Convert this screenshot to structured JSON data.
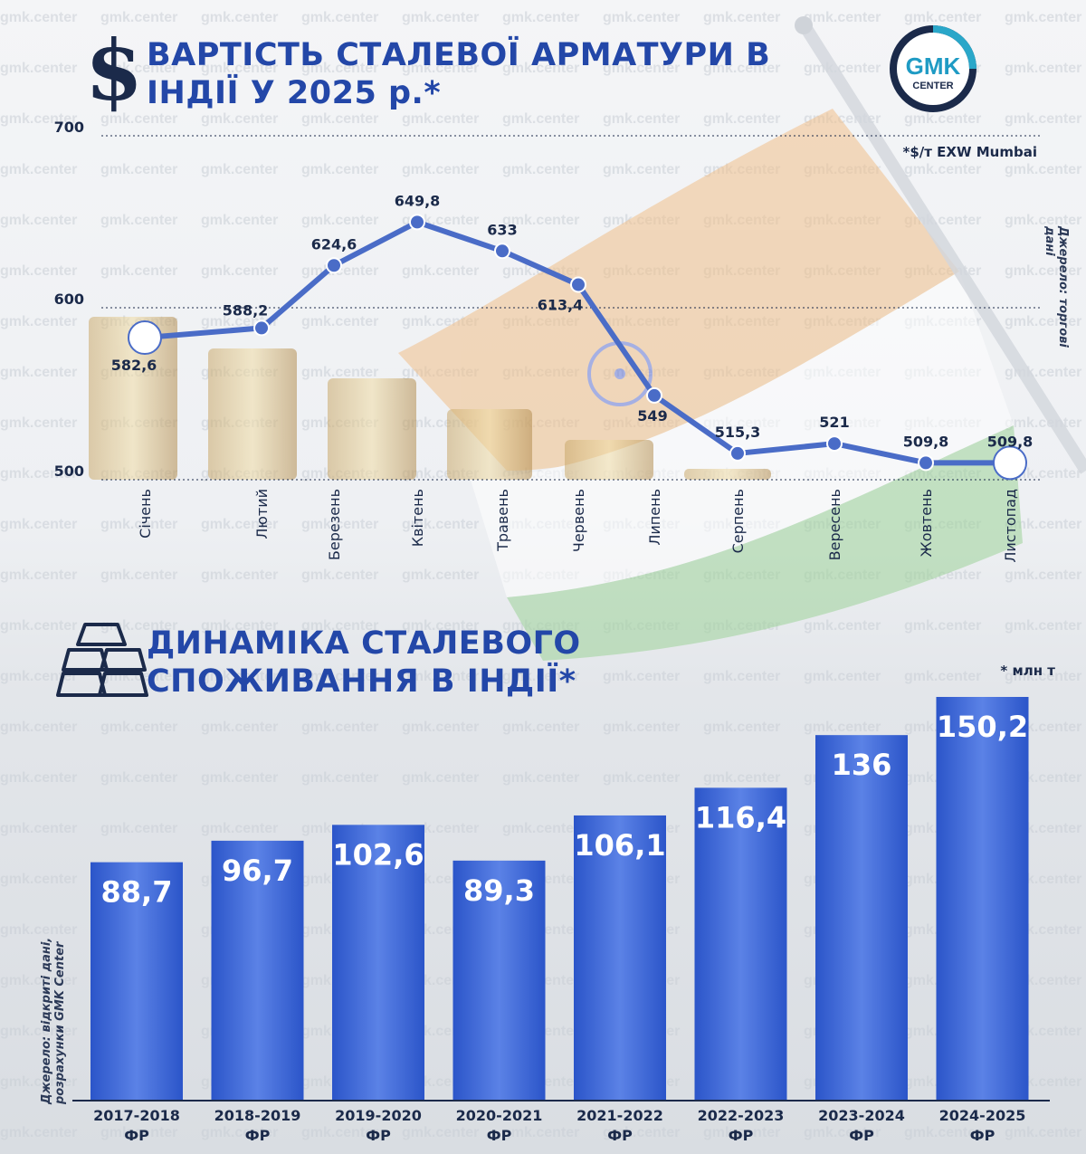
{
  "header": {
    "title_top": "ВАРТІСТЬ СТАЛЕВОЇ АРМАТУРИ В ІНДІЇ У 2025 р.*",
    "logo_line1": "GMK",
    "logo_line2": "CENTER",
    "unit_note": "*$/т EXW Mumbai",
    "source_top": "Джерело: торгові дані",
    "title_bottom": "ДИНАМІКА СТАЛЕВОГО СПОЖИВАННЯ В ІНДІЇ*",
    "unit_note_bottom": "* млн т",
    "source_bottom": "Джерело: відкриті дані, розрахунки GMK Center",
    "watermark": "gmk.center"
  },
  "colors": {
    "title": "#2347a8",
    "line": "#4a6cc7",
    "bar": "#2f5bd0",
    "text": "#1b2a4a"
  },
  "chart_data": [
    {
      "type": "line",
      "title": "ВАРТІСТЬ СТАЛЕВОЇ АРМАТУРИ В ІНДІЇ У 2025 р.*",
      "categories": [
        "Січень",
        "Лютий",
        "Березень",
        "Квітень",
        "Травень",
        "Червень",
        "Липень",
        "Серпень",
        "Вересень",
        "Жовтень",
        "Листопад"
      ],
      "values": [
        582.6,
        588.2,
        624.6,
        649.8,
        633,
        613.4,
        549,
        515.3,
        521,
        509.8,
        509.8
      ],
      "labels": [
        "582,6",
        "588,2",
        "624,6",
        "649,8",
        "633",
        "613,4",
        "549",
        "515,3",
        "521",
        "509,8",
        "509,8"
      ],
      "yticks": [
        "500",
        "600",
        "700"
      ],
      "ytick_values": [
        500,
        600,
        700
      ],
      "ylim": [
        500,
        700
      ],
      "grid": true
    },
    {
      "type": "bar",
      "title": "ДИНАМІКА СТАЛЕВОГО СПОЖИВАННЯ В ІНДІЇ*",
      "categories": [
        "2017-2018 ФР",
        "2018-2019 ФР",
        "2019-2020 ФР",
        "2020-2021 ФР",
        "2021-2022 ФР",
        "2022-2023 ФР",
        "2023-2024 ФР",
        "2024-2025 ФР"
      ],
      "category_line1": [
        "2017-2018",
        "2018-2019",
        "2019-2020",
        "2020-2021",
        "2021-2022",
        "2022-2023",
        "2023-2024",
        "2024-2025"
      ],
      "category_line2": [
        "ФР",
        "ФР",
        "ФР",
        "ФР",
        "ФР",
        "ФР",
        "ФР",
        "ФР"
      ],
      "values": [
        88.7,
        96.7,
        102.6,
        89.3,
        106.1,
        116.4,
        136,
        150.2
      ],
      "labels": [
        "88,7",
        "96,7",
        "102,6",
        "89,3",
        "106,1",
        "116,4",
        "136",
        "150,2"
      ]
    }
  ]
}
